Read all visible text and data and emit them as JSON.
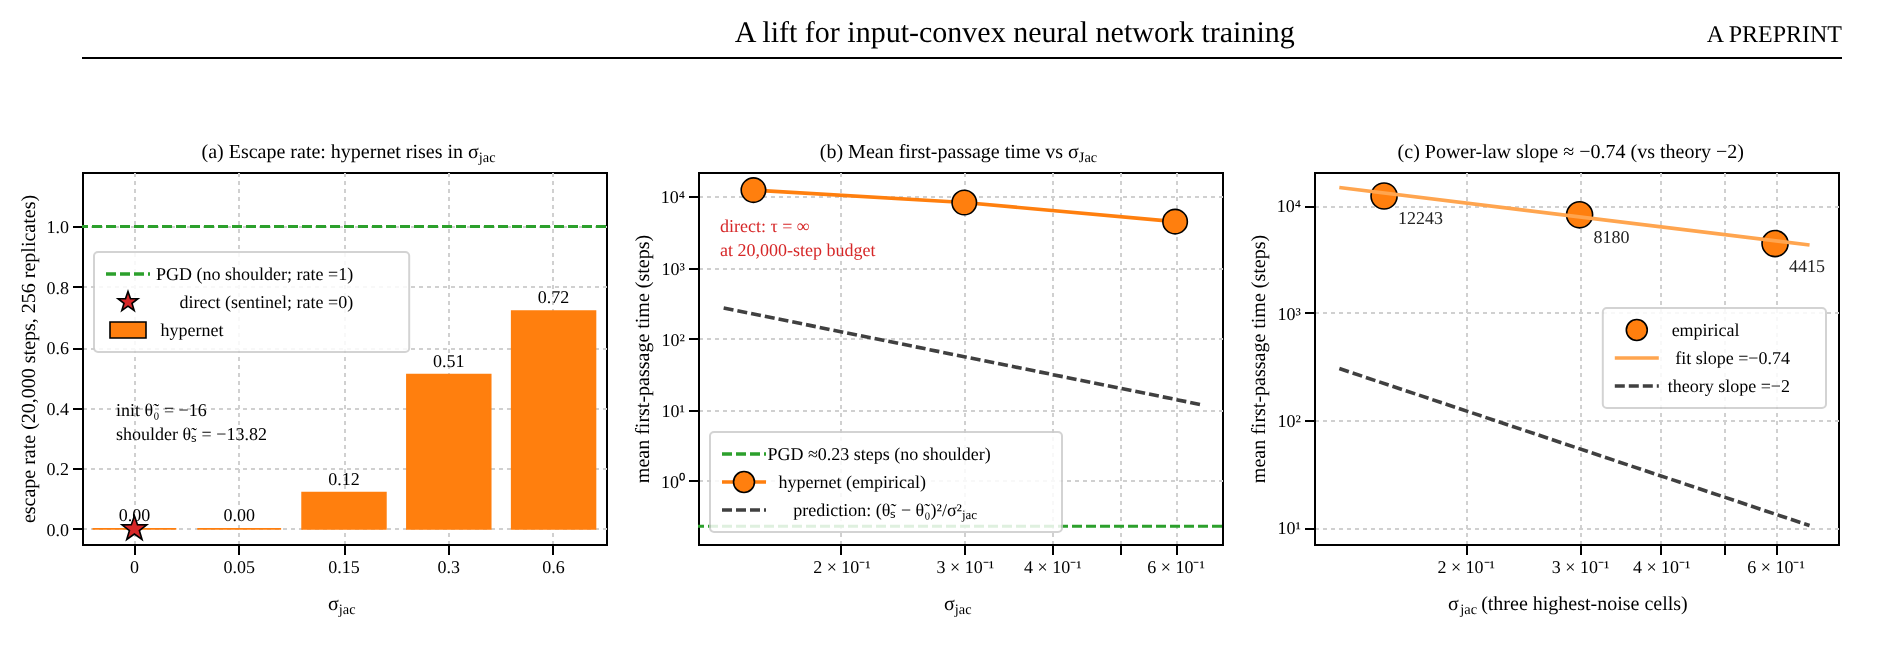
{
  "chart_data": [
    {
      "type": "other",
      "title": "A lift for input-convex neural network training",
      "annotations": [
        "A PREPRINT"
      ]
    },
    {
      "type": "bar",
      "title": "(a) Escape rate: hypernet rises in σ$_{jac}$",
      "xlabel": "σ$_{jac}$",
      "ylabel": "escape rate (20,000 steps, 256 replicates)",
      "categories": [
        "0",
        "0.05",
        "0.15",
        "0.3",
        "0.6"
      ],
      "series": [
        {
          "name": "direct (sentinel; rate =0)",
          "type": "scatter",
          "marker": "star",
          "color": "#d62728",
          "x": [
            "0"
          ],
          "values": [
            0
          ]
        },
        {
          "name": "hypernet",
          "type": "bar",
          "color": "#ff7f0e",
          "values": [
            0,
            0,
            0.12,
            0.51,
            0.72
          ],
          "value_labels": [
            "0.00",
            "0.00",
            "0.12",
            "0.51",
            "0.72"
          ]
        }
      ],
      "ylim": [
        -0.05,
        1.18
      ],
      "yticks": [
        {
          "value": 0,
          "label": "0.0"
        },
        {
          "value": 0.2,
          "label": "0.2"
        },
        {
          "value": 0.4,
          "label": "0.4"
        },
        {
          "value": 0.6,
          "label": "0.6"
        },
        {
          "value": 0.8,
          "label": "0.8"
        },
        {
          "value": 1,
          "label": "1.0"
        }
      ],
      "ref_lines": [
        {
          "axis": "y",
          "value": 1,
          "label": "PGD (no shoulder; rate =1)",
          "color": "#2ca02c",
          "line_style": "dashed"
        }
      ],
      "annotations": [
        "init θ̃₀ = −16\nshoulder θ̃ₛ = −13.82"
      ],
      "grid": true,
      "legend": "top left"
    },
    {
      "type": "line",
      "title": "(b) Mean first-passage time vs σ$_{Jac}$",
      "xlabel": "σ$_{jac}$",
      "ylabel": "mean first-passage time (steps)",
      "log": "xy",
      "xlim": [
        0.125,
        0.7
      ],
      "xticks": [
        {
          "value": 0.2,
          "label": "2 × 10⁻¹"
        },
        {
          "value": 0.3,
          "label": "3 × 10⁻¹"
        },
        {
          "value": 0.4,
          "label": "4 × 10⁻¹"
        },
        {
          "value": 0.5,
          "label": null
        },
        {
          "value": 0.6,
          "label": "6 × 10⁻¹"
        }
      ],
      "ylim": [
        0.13,
        22000
      ],
      "yticks": [
        {
          "value": 1,
          "label": "10⁰"
        },
        {
          "value": 10,
          "label": "10¹"
        },
        {
          "value": 100,
          "label": "10²"
        },
        {
          "value": 1000,
          "label": "10³"
        },
        {
          "value": 10000,
          "label": "10⁴"
        }
      ],
      "series": [
        {
          "name": "hypernet (empirical)",
          "type": "line",
          "marker": "circle",
          "color": "#ff7f0e",
          "x": [
            0.15,
            0.3,
            0.6
          ],
          "values": [
            12243,
            8180,
            4415
          ]
        },
        {
          "name": "prediction: (θ̃ₛ − θ̃₀)²/σ²$_{jac}$",
          "type": "line",
          "line_style": "dashed",
          "color": "#404040",
          "x": [
            0.136,
            0.657
          ],
          "values": [
            270,
            11.7
          ]
        }
      ],
      "ref_lines": [
        {
          "axis": "y",
          "value": 0.23,
          "label": "PGD ≈0.23 steps (no shoulder)",
          "color": "#2ca02c",
          "line_style": "dashed"
        }
      ],
      "annotations": [
        "direct: τ = ∞\nat 20,000-step budget"
      ],
      "grid": true,
      "legend": "bottom left"
    },
    {
      "type": "line",
      "title": "(c) Power-law slope ≈ −0.74 (vs theory −2)",
      "xlabel": "σ$_{jac}$ (three highest-noise cells)",
      "ylabel": "mean first-passage time (steps)",
      "log": "xy",
      "xlim": [
        0.117,
        0.75
      ],
      "xticks": [
        {
          "value": 0.2,
          "label": "2 × 10⁻¹"
        },
        {
          "value": 0.3,
          "label": "3 × 10⁻¹"
        },
        {
          "value": 0.4,
          "label": "4 × 10⁻¹"
        },
        {
          "value": 0.5,
          "label": null
        },
        {
          "value": 0.6,
          "label": "6 × 10⁻¹"
        }
      ],
      "ylim": [
        7,
        20500
      ],
      "yticks": [
        {
          "value": 10,
          "label": "10¹"
        },
        {
          "value": 100,
          "label": "10²"
        },
        {
          "value": 1000,
          "label": "10³"
        },
        {
          "value": 10000,
          "label": "10⁴"
        }
      ],
      "series": [
        {
          "name": "empirical",
          "type": "scatter",
          "marker": "circle",
          "color": "#ff7f0e",
          "x": [
            0.15,
            0.3,
            0.6
          ],
          "values": [
            12243,
            8180,
            4415
          ],
          "value_labels": [
            "12243",
            "8180",
            "4415"
          ]
        },
        {
          "name": "fit slope =−0.74",
          "type": "line",
          "color": "#ffa54f",
          "x": [
            0.128,
            0.678
          ],
          "values": [
            14700,
            4280
          ]
        },
        {
          "name": "theory slope =−2",
          "type": "line",
          "line_style": "dashed",
          "color": "#404040",
          "x": [
            0.128,
            0.678
          ],
          "values": [
            302,
            10.4
          ]
        }
      ],
      "grid": true,
      "legend": "right"
    }
  ]
}
